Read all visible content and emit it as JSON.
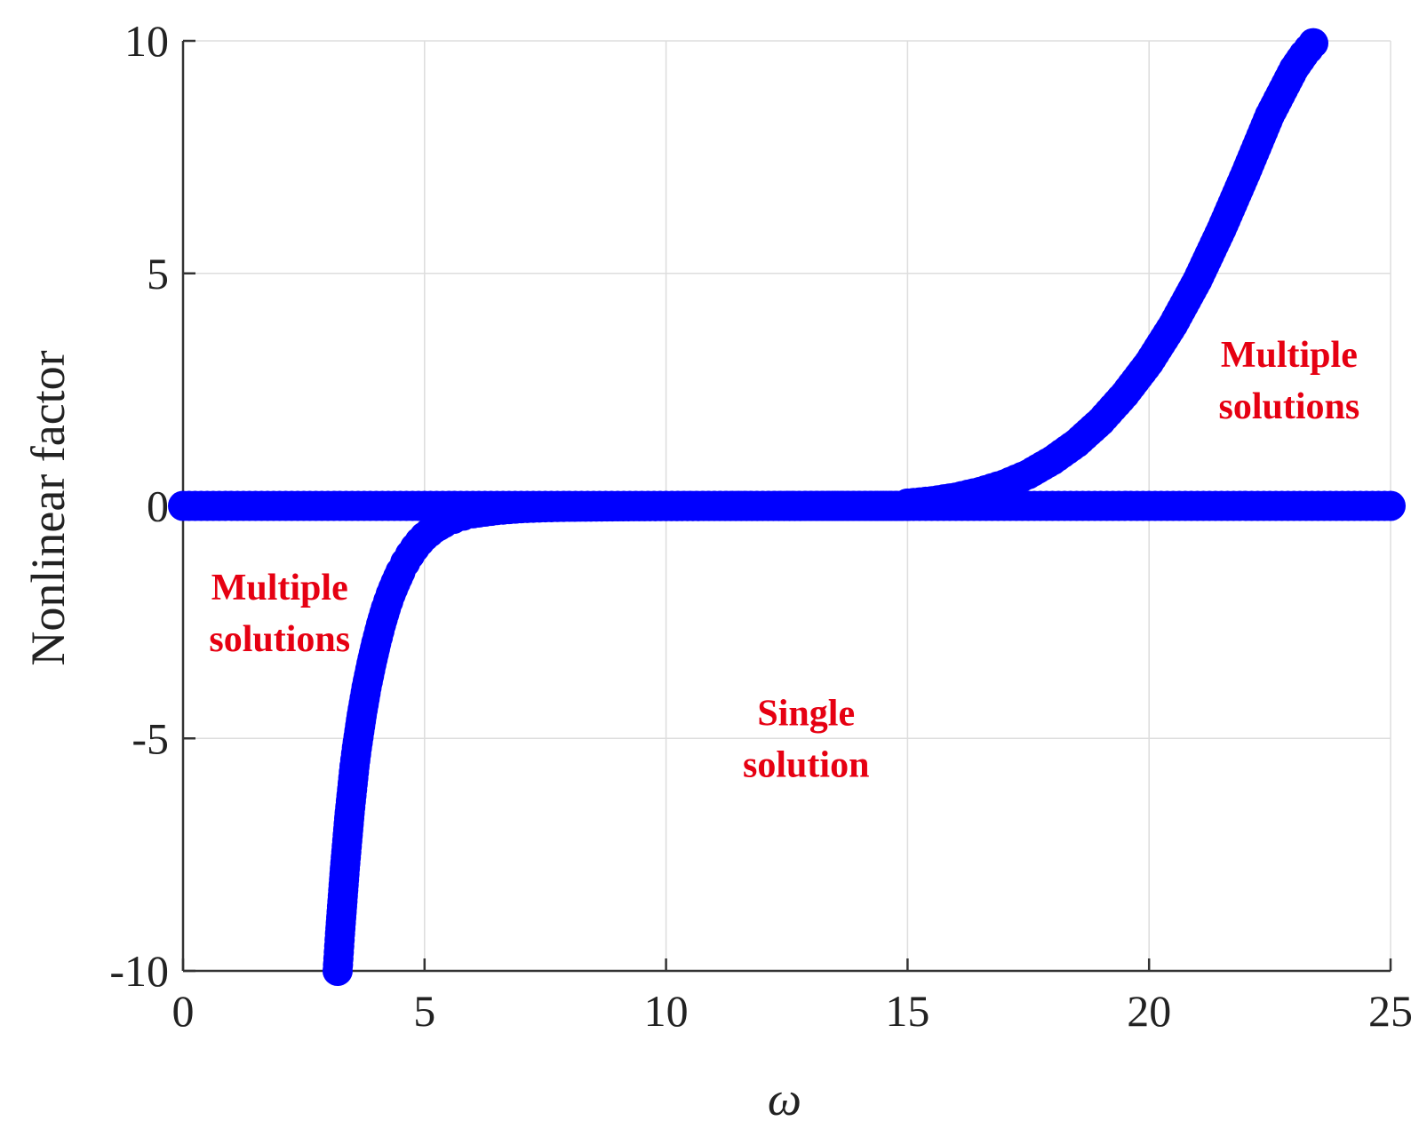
{
  "chart_data": {
    "type": "scatter",
    "title": "",
    "xlabel": "ω",
    "ylabel": "Nonlinear factor",
    "xlim": [
      0,
      25
    ],
    "ylim": [
      -10,
      10
    ],
    "xticks": [
      0,
      5,
      10,
      15,
      20,
      25
    ],
    "yticks": [
      -10,
      -5,
      0,
      5,
      10
    ],
    "xtick_labels": [
      "0",
      "5",
      "10",
      "15",
      "20",
      "25"
    ],
    "ytick_labels": [
      "-10",
      "-5",
      "0",
      "5",
      "10"
    ],
    "grid": true,
    "legend": "none",
    "marker_color": "#0000ff",
    "series": [
      {
        "x": [
          0,
          0.5,
          1,
          1.5,
          2,
          2.5,
          3,
          3.5,
          4,
          4.5,
          5,
          5.5,
          6,
          6.5,
          7,
          7.5,
          8,
          8.5,
          9,
          9.5,
          10,
          10.5,
          11,
          11.5,
          12,
          12.5,
          13,
          13.5,
          14,
          14.5,
          15,
          15.5,
          16,
          16.5,
          17,
          17.5,
          18,
          18.5,
          19,
          19.5,
          20,
          20.5,
          21,
          21.5,
          22,
          22.5,
          23,
          23.5,
          24,
          24.5,
          25
        ],
        "y": [
          0,
          0,
          0,
          0,
          0,
          0,
          0,
          0,
          0,
          0,
          0,
          0,
          0,
          0,
          0,
          0,
          0,
          0,
          0,
          0,
          0,
          0,
          0,
          0,
          0,
          0,
          0,
          0,
          0,
          0,
          0,
          0,
          0,
          0,
          0,
          0,
          0,
          0,
          0,
          0,
          0,
          0,
          0,
          0,
          0,
          0,
          0,
          0,
          0,
          0,
          0
        ]
      },
      {
        "x": [
          3.2,
          3.25,
          3.3,
          3.35,
          3.4,
          3.45,
          3.5,
          3.55,
          3.6,
          3.7,
          3.8,
          3.9,
          4.0,
          4.1,
          4.2,
          4.3,
          4.4,
          4.5,
          4.6,
          4.7,
          4.8,
          4.9,
          5.0,
          5.2,
          5.4,
          5.6,
          5.8,
          6.0,
          6.5,
          7.0,
          7.5,
          8.0,
          9.0,
          10.0,
          11.0,
          12.0,
          13.0,
          14.0,
          15.0
        ],
        "y": [
          -10,
          -9.2,
          -8.5,
          -7.8,
          -7.2,
          -6.6,
          -6.1,
          -5.6,
          -5.2,
          -4.5,
          -3.9,
          -3.4,
          -2.95,
          -2.55,
          -2.2,
          -1.9,
          -1.65,
          -1.42,
          -1.22,
          -1.05,
          -0.9,
          -0.77,
          -0.66,
          -0.49,
          -0.37,
          -0.28,
          -0.21,
          -0.16,
          -0.09,
          -0.05,
          -0.03,
          -0.02,
          -0.01,
          -0.005,
          -0.003,
          -0.002,
          -0.001,
          -0.0005,
          0
        ]
      },
      {
        "x": [
          15,
          15.5,
          16,
          16.5,
          17,
          17.5,
          18,
          18.5,
          19,
          19.5,
          20,
          20.5,
          21,
          21.5,
          22,
          22.5,
          23,
          23.2,
          23.4
        ],
        "y": [
          0.05,
          0.1,
          0.18,
          0.3,
          0.46,
          0.68,
          0.98,
          1.35,
          1.82,
          2.4,
          3.08,
          3.9,
          4.85,
          5.95,
          7.15,
          8.4,
          9.4,
          9.7,
          9.95
        ]
      }
    ],
    "annotations": [
      {
        "text_lines": [
          "Multiple",
          "solutions"
        ],
        "x": 22.9,
        "y": 2.7,
        "color": "#e60012"
      },
      {
        "text_lines": [
          "Multiple",
          "solutions"
        ],
        "x": 2.0,
        "y": -2.3,
        "color": "#e60012"
      },
      {
        "text_lines": [
          "Single",
          "solution"
        ],
        "x": 12.9,
        "y": -5.0,
        "color": "#e60012"
      }
    ]
  }
}
